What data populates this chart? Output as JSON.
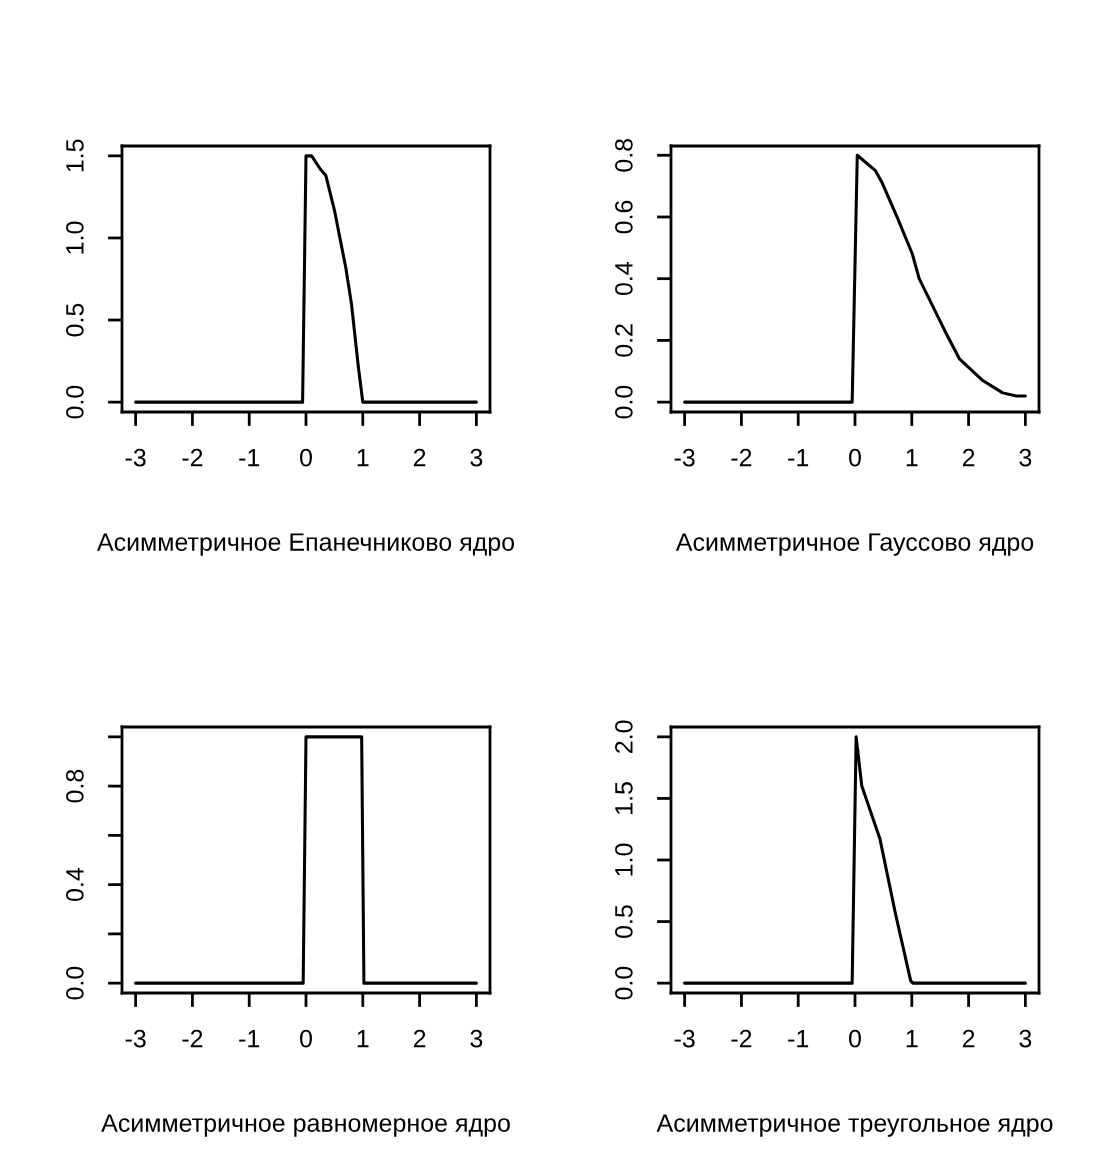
{
  "chart_data": [
    {
      "type": "line",
      "xlabel": "Асимметричное Епанечниково ядро",
      "color": "#000000",
      "x": [
        -3,
        -0.06,
        0,
        0.1,
        0.25,
        0.35,
        0.5,
        0.7,
        0.8,
        0.92,
        1.0,
        3
      ],
      "values": [
        0,
        0,
        1.5,
        1.5,
        1.42,
        1.38,
        1.17,
        0.82,
        0.6,
        0.22,
        0,
        0
      ],
      "xlim": [
        -3.24,
        3.24
      ],
      "xticks": [
        -3,
        -2,
        -1,
        0,
        1,
        2,
        3
      ],
      "ylim": [
        -0.06,
        1.56
      ],
      "yticks": [
        {
          "value": 0,
          "label": "0.0"
        },
        {
          "value": 0.5,
          "label": "0.5"
        },
        {
          "value": 1,
          "label": "1.0"
        },
        {
          "value": 1.5,
          "label": "1.5"
        }
      ]
    },
    {
      "type": "line",
      "xlabel": "Асимметричное Гауссово ядро",
      "color": "#000000",
      "x": [
        -3,
        -0.05,
        0.04,
        0.36,
        0.48,
        0.74,
        1.01,
        1.13,
        1.64,
        1.84,
        2.25,
        2.6,
        2.84,
        3.0
      ],
      "values": [
        0,
        0,
        0.8,
        0.75,
        0.71,
        0.6,
        0.48,
        0.4,
        0.21,
        0.14,
        0.07,
        0.03,
        0.02,
        0.02
      ],
      "xlim": [
        -3.24,
        3.24
      ],
      "xticks": [
        -3,
        -2,
        -1,
        0,
        1,
        2,
        3
      ],
      "ylim": [
        -0.032,
        0.83
      ],
      "yticks": [
        {
          "value": 0,
          "label": "0.0"
        },
        0.2,
        0.4,
        0.6,
        0.8
      ]
    },
    {
      "type": "line",
      "xlabel": "Асимметричное равномерное ядро",
      "color": "#000000",
      "x": [
        -3,
        -0.05,
        0,
        0.98,
        1.02,
        3
      ],
      "values": [
        0,
        0,
        1,
        1,
        0,
        0
      ],
      "xlim": [
        -3.24,
        3.24
      ],
      "xticks": [
        -3,
        -2,
        -1,
        0,
        1,
        2,
        3
      ],
      "ylim": [
        -0.04,
        1.04
      ],
      "yticks": [
        {
          "value": 0,
          "label": "0.0"
        },
        {
          "value": 0.2,
          "label": null
        },
        0.4,
        {
          "value": 0.6,
          "label": null
        },
        0.8,
        {
          "value": 1,
          "label": null
        }
      ]
    },
    {
      "type": "line",
      "xlabel": "Асимметричное треугольное ядро",
      "color": "#000000",
      "x": [
        -3,
        -0.05,
        0.02,
        0.12,
        0.44,
        0.71,
        0.98,
        1.02,
        3
      ],
      "values": [
        0,
        0,
        2.0,
        1.6,
        1.17,
        0.57,
        0.02,
        0,
        0
      ],
      "xlim": [
        -3.24,
        3.24
      ],
      "xticks": [
        -3,
        -2,
        -1,
        0,
        1,
        2,
        3
      ],
      "ylim": [
        -0.08,
        2.08
      ],
      "yticks": [
        {
          "value": 0,
          "label": "0.0"
        },
        {
          "value": 0.5,
          "label": "0.5"
        },
        {
          "value": 1,
          "label": "1.0"
        },
        {
          "value": 1.5,
          "label": "1.5"
        },
        {
          "value": 2,
          "label": "2.0"
        }
      ]
    }
  ]
}
